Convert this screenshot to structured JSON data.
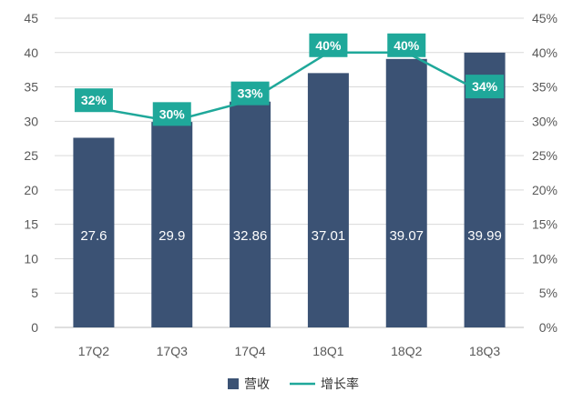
{
  "chart_data": {
    "type": "bar",
    "categories": [
      "17Q2",
      "17Q3",
      "17Q4",
      "18Q1",
      "18Q2",
      "18Q3"
    ],
    "series": [
      {
        "name": "营收",
        "type": "bar",
        "axis": "left",
        "values": [
          27.6,
          29.9,
          32.86,
          37.01,
          39.07,
          39.99
        ],
        "labels": [
          "27.6",
          "29.9",
          "32.86",
          "37.01",
          "39.07",
          "39.99"
        ],
        "color": "#3b5274"
      },
      {
        "name": "增长率",
        "type": "line",
        "axis": "right",
        "values": [
          32,
          30,
          33,
          40,
          40,
          34
        ],
        "labels": [
          "32%",
          "30%",
          "33%",
          "40%",
          "40%",
          "34%"
        ],
        "color": "#1fa89a"
      }
    ],
    "y_left": {
      "min": 0,
      "max": 45,
      "step": 5,
      "ticks": [
        "0",
        "5",
        "10",
        "15",
        "20",
        "25",
        "30",
        "35",
        "40",
        "45"
      ]
    },
    "y_right": {
      "min": 0,
      "max": 45,
      "step": 5,
      "ticks": [
        "0%",
        "5%",
        "10%",
        "15%",
        "20%",
        "25%",
        "30%",
        "35%",
        "40%",
        "45%"
      ]
    },
    "grid": true,
    "legend": "bottom-center",
    "title": "",
    "xlabel": "",
    "ylabel": ""
  }
}
